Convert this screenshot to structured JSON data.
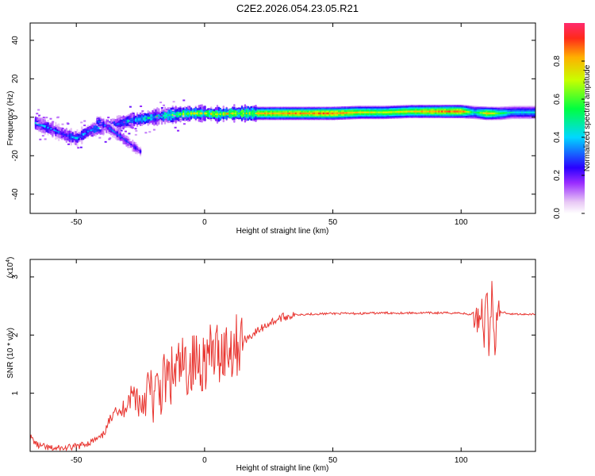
{
  "title": "C2E2.2026.054.23.05.R21",
  "colors": {
    "signal": "#e8342f",
    "axis": "#000000"
  },
  "chart_data": [
    {
      "type": "heatmap",
      "title": "C2E2.2026.054.23.05.R21",
      "xlabel": "Height of straight line (km)",
      "ylabel": "Frequency (Hz)",
      "xlim": [
        -68,
        129
      ],
      "ylim": [
        -50,
        49
      ],
      "x_ticks": [
        -50,
        0,
        50,
        100
      ],
      "x_tick_labels": [
        "-50",
        "0",
        "50",
        "100"
      ],
      "y_ticks": [
        -40,
        -20,
        0,
        20,
        40
      ],
      "y_tick_labels": [
        "-40",
        "-20",
        "0",
        "20",
        "40"
      ],
      "colorbar": {
        "label": "Normalized spectral amplitude",
        "range": [
          0,
          1
        ],
        "ticks": [
          0,
          0.2,
          0.4,
          0.6,
          0.8
        ],
        "tick_labels": [
          "0.0",
          "0.2",
          "0.4",
          "0.6",
          "0.8"
        ]
      },
      "ridge": {
        "x": [
          -66,
          -60,
          -55,
          -50,
          -45,
          -40,
          -35,
          -30,
          -25,
          -20,
          -15,
          -10,
          -5,
          0,
          5,
          10,
          15,
          20,
          30,
          40,
          50,
          60,
          70,
          80,
          90,
          100,
          105,
          110,
          115,
          120,
          129
        ],
        "freq": [
          -3,
          -6,
          -9,
          -11,
          -7,
          -5,
          -4,
          -2,
          -1,
          0,
          1,
          1.5,
          2,
          2,
          1.5,
          2,
          2,
          2,
          2,
          2,
          2,
          2.5,
          2.5,
          3,
          3,
          3,
          2.5,
          2,
          2,
          2.5,
          2.5
        ],
        "amplitude": [
          0.45,
          0.4,
          0.35,
          0.45,
          0.4,
          0.45,
          0.4,
          0.5,
          0.5,
          0.55,
          0.7,
          0.75,
          0.8,
          0.8,
          0.85,
          0.85,
          0.85,
          0.85,
          0.9,
          0.9,
          0.95,
          0.8,
          0.75,
          0.8,
          0.9,
          0.95,
          0.5,
          0.85,
          0.6,
          0.45,
          0.45
        ]
      },
      "secondary_branch": {
        "x": [
          -42,
          -38,
          -35,
          -32,
          -28,
          -25
        ],
        "freq": [
          -2,
          -5,
          -8,
          -11,
          -15,
          -18
        ],
        "amplitude": [
          0.45,
          0.4,
          0.35,
          0.35,
          0.3,
          0.25
        ]
      }
    },
    {
      "type": "line",
      "xlabel": "Height of straight line (km)",
      "ylabel": "SNR (10 * v/v)",
      "y_multiplier": "(x10",
      "y_multiplier_exp": "4",
      "xlim": [
        -68,
        129
      ],
      "ylim": [
        0,
        3.3
      ],
      "x_ticks": [
        -50,
        0,
        50,
        100
      ],
      "x_tick_labels": [
        "-50",
        "0",
        "50",
        "100"
      ],
      "y_ticks": [
        1,
        2,
        3
      ],
      "y_tick_labels": [
        "1",
        "2",
        "3"
      ],
      "series": [
        {
          "name": "SNR",
          "x": [
            -68,
            -65,
            -60,
            -55,
            -50,
            -45,
            -40,
            -37,
            -35,
            -33,
            -30,
            -27,
            -25,
            -22,
            -20,
            -17,
            -15,
            -12,
            -10,
            -7,
            -5,
            -2,
            0,
            3,
            5,
            8,
            10,
            13,
            15,
            20,
            25,
            30,
            35,
            40,
            50,
            60,
            70,
            80,
            90,
            100,
            103,
            105,
            107,
            108,
            109,
            110,
            111,
            112,
            113,
            115,
            118,
            120,
            125,
            129
          ],
          "values": [
            0.25,
            0.1,
            0.05,
            0.05,
            0.08,
            0.15,
            0.25,
            0.5,
            0.8,
            0.6,
            0.9,
            1.0,
            0.8,
            1.1,
            0.9,
            1.1,
            1.2,
            1.3,
            1.4,
            1.45,
            1.5,
            1.55,
            1.6,
            1.65,
            1.7,
            1.75,
            1.8,
            1.85,
            1.9,
            2.05,
            2.2,
            2.3,
            2.35,
            2.36,
            2.37,
            2.37,
            2.38,
            2.38,
            2.38,
            2.38,
            2.35,
            2.38,
            2.3,
            2.5,
            2.0,
            2.9,
            1.7,
            2.7,
            1.9,
            2.4,
            2.38,
            2.36,
            2.36,
            2.36
          ]
        }
      ]
    }
  ]
}
